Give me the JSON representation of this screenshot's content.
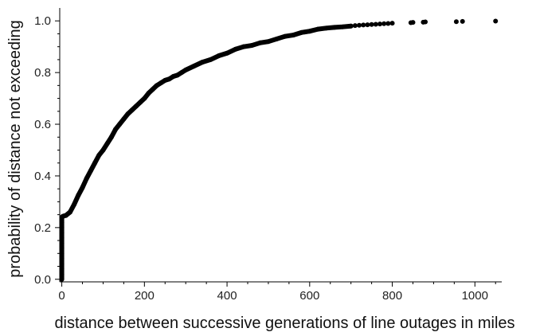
{
  "chart_data": {
    "type": "scatter",
    "title": "",
    "xlabel": "distance between successive generations of line outages in miles",
    "ylabel": "probability of distance not exceeding",
    "xlim": [
      -5,
      1065
    ],
    "ylim": [
      -0.01,
      1.05
    ],
    "x_ticks": [
      0,
      200,
      400,
      600,
      800,
      1000
    ],
    "x_tick_labels": [
      "0",
      "200",
      "400",
      "600",
      "800",
      "1000"
    ],
    "y_ticks": [
      0.0,
      0.2,
      0.4,
      0.6,
      0.8,
      1.0
    ],
    "y_tick_labels": [
      "0.0",
      "0.2",
      "0.4",
      "0.6",
      "0.8",
      "1.0"
    ],
    "grid": false,
    "legend": "none",
    "marker_color": "#000000",
    "series": [
      {
        "x": [
          0,
          0,
          0,
          0,
          0,
          0,
          0,
          0,
          0,
          0,
          0,
          0,
          0,
          0,
          0,
          2,
          5,
          10,
          20,
          30,
          40,
          50,
          60,
          70,
          80,
          90,
          100,
          110,
          120,
          130,
          140,
          150,
          160,
          170,
          180,
          190,
          200,
          210,
          220,
          230,
          240,
          250,
          260,
          270,
          280,
          290,
          300,
          320,
          340,
          360,
          380,
          400,
          420,
          440,
          460,
          480,
          500,
          520,
          540,
          560,
          580,
          600,
          620,
          640,
          660,
          680,
          700,
          710,
          720,
          730,
          740,
          750,
          760,
          770,
          780,
          790,
          800,
          845,
          850,
          875,
          880,
          955,
          970,
          1050
        ],
        "y": [
          0.0,
          0.02,
          0.04,
          0.06,
          0.08,
          0.1,
          0.12,
          0.14,
          0.16,
          0.18,
          0.2,
          0.22,
          0.235,
          0.238,
          0.24,
          0.243,
          0.245,
          0.247,
          0.26,
          0.29,
          0.325,
          0.355,
          0.39,
          0.42,
          0.45,
          0.48,
          0.5,
          0.525,
          0.55,
          0.58,
          0.6,
          0.62,
          0.64,
          0.655,
          0.67,
          0.685,
          0.7,
          0.72,
          0.735,
          0.75,
          0.76,
          0.77,
          0.775,
          0.785,
          0.79,
          0.8,
          0.81,
          0.825,
          0.84,
          0.85,
          0.865,
          0.875,
          0.89,
          0.9,
          0.905,
          0.915,
          0.92,
          0.93,
          0.94,
          0.945,
          0.955,
          0.96,
          0.968,
          0.972,
          0.975,
          0.977,
          0.98,
          0.982,
          0.983,
          0.984,
          0.985,
          0.986,
          0.987,
          0.988,
          0.989,
          0.99,
          0.991,
          0.993,
          0.994,
          0.995,
          0.996,
          0.997,
          0.998,
          0.999
        ]
      }
    ]
  }
}
